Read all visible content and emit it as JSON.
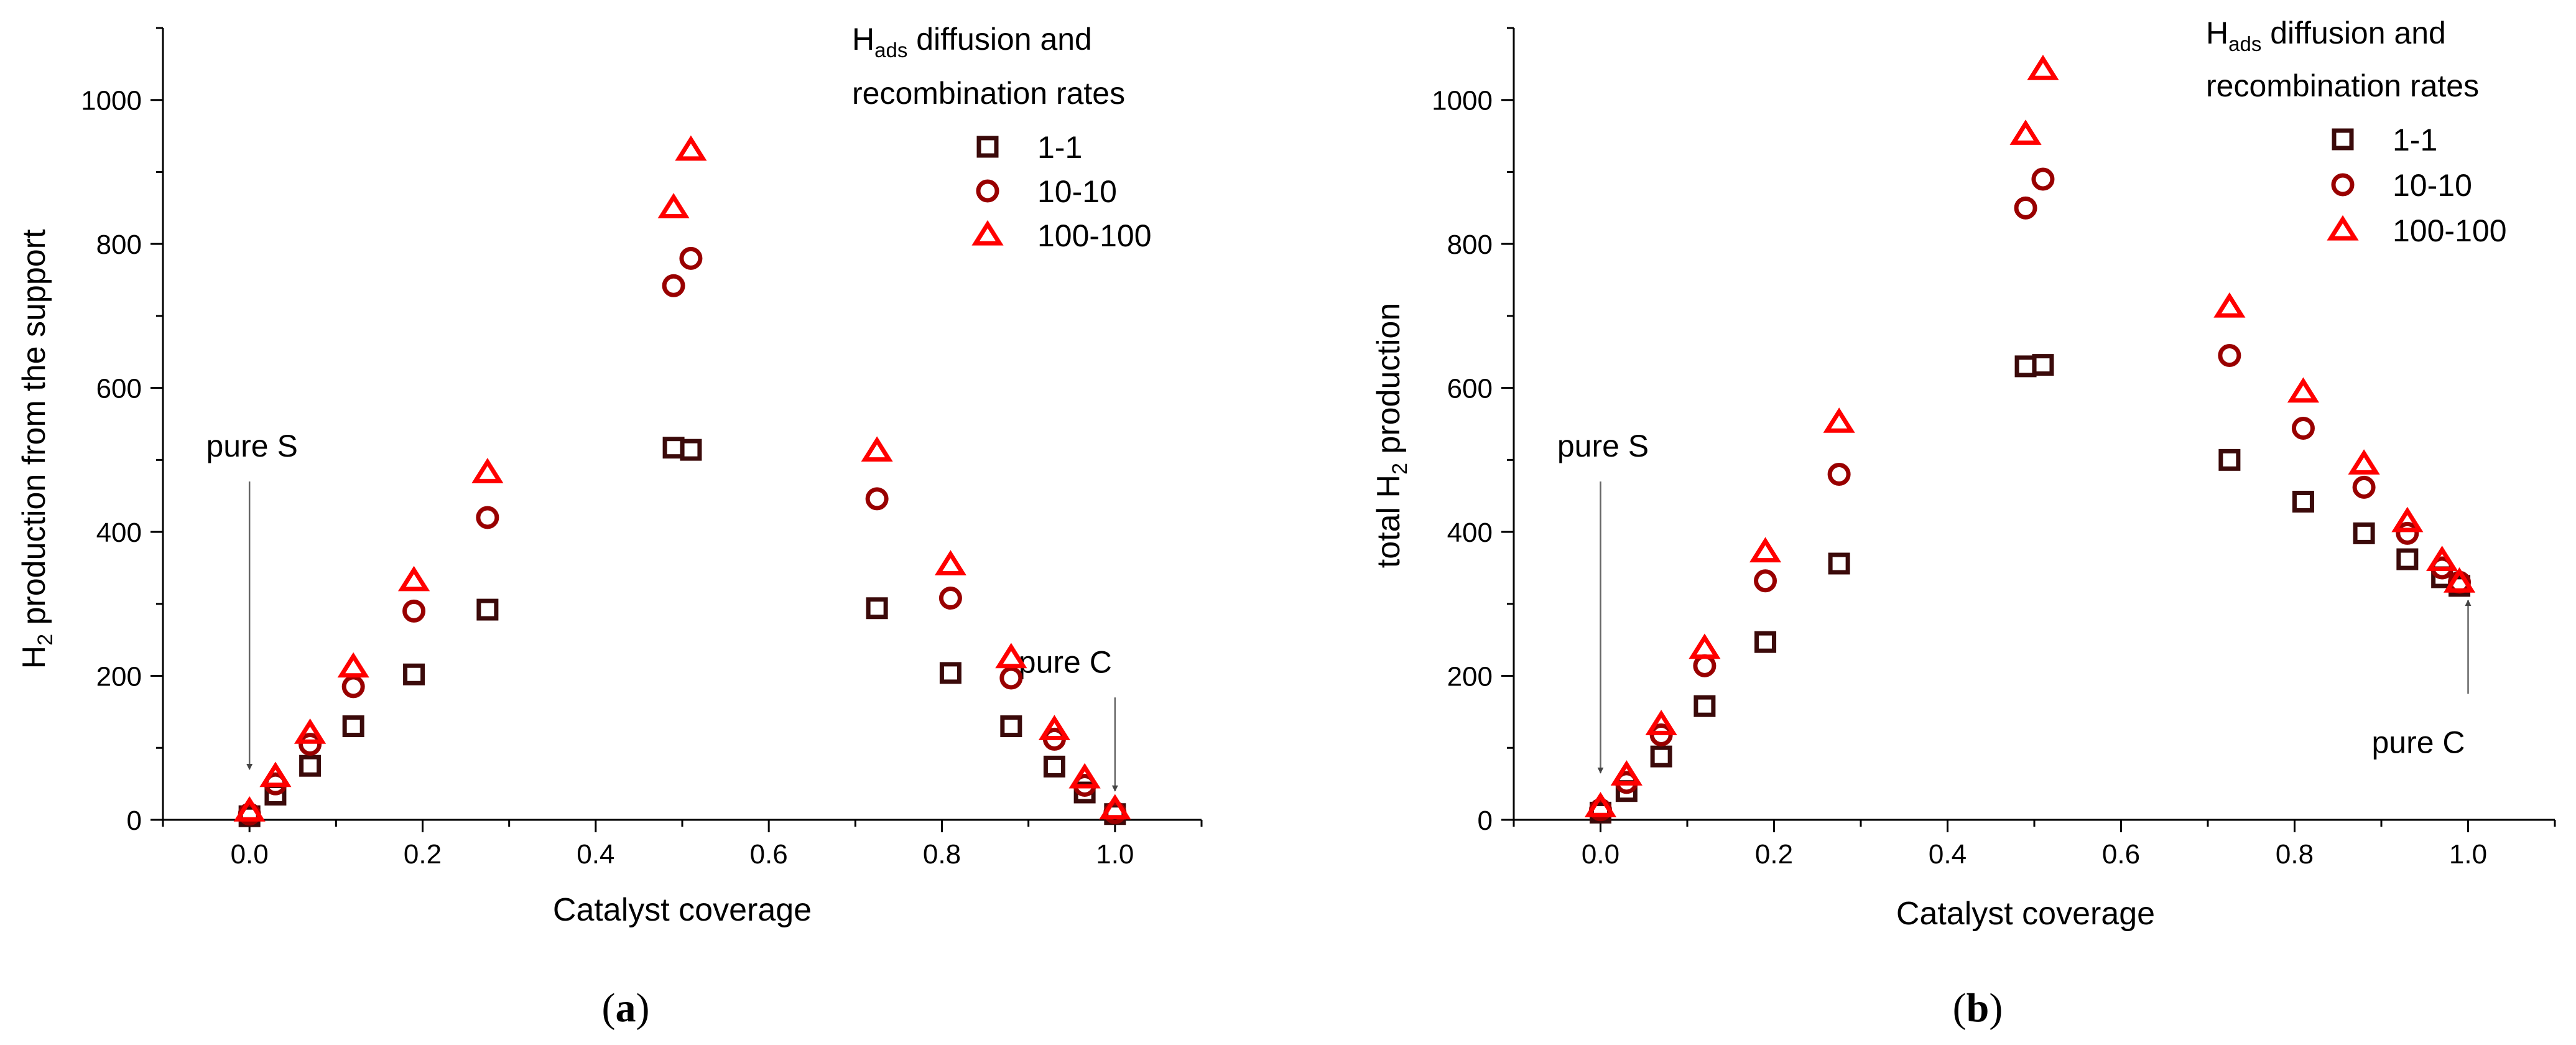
{
  "colors": {
    "series_1_1": "#3b0a0a",
    "series_10_10": "#990000",
    "series_100_100": "#ff0000",
    "axis": "#000000",
    "arrow": "#666666"
  },
  "legend": {
    "title_prefix": "H",
    "title_subscript": "ads",
    "title_suffix": " diffusion and",
    "title_line2": "recombination rates"
  },
  "chart_data": [
    {
      "type": "scatter",
      "panel_label": "a",
      "xlabel": "Catalyst coverage",
      "ylabel": {
        "prefix": "H",
        "subscript": "2",
        "suffix": " production from the support"
      },
      "xlim": [
        -0.1,
        1.1
      ],
      "ylim": [
        0,
        1100
      ],
      "xticks": [
        0.0,
        0.2,
        0.4,
        0.6,
        0.8,
        1.0
      ],
      "xtick_labels": [
        "0.0",
        "0.2",
        "0.4",
        "0.6",
        "0.8",
        "1.0"
      ],
      "yticks": [
        0,
        200,
        400,
        600,
        800,
        1000
      ],
      "ytick_labels": [
        "0",
        "200",
        "400",
        "600",
        "800",
        "1000"
      ],
      "legend_position": "top-right",
      "annotations": [
        {
          "text": "pure S",
          "point_x": 0.0,
          "point_y": 70,
          "tail_y": 470,
          "label_side": "above"
        },
        {
          "text": "pure C",
          "point_x": 1.0,
          "point_y": 40,
          "tail_y": 170,
          "label_side": "above"
        }
      ],
      "series": [
        {
          "name": "1-1",
          "marker": "square",
          "x": [
            0.0,
            0.03,
            0.07,
            0.12,
            0.19,
            0.275,
            0.49,
            0.51,
            0.725,
            0.81,
            0.88,
            0.93,
            0.965,
            1.0
          ],
          "y": [
            5,
            35,
            75,
            130,
            202,
            292,
            517,
            514,
            294,
            204,
            130,
            74,
            38,
            8
          ]
        },
        {
          "name": "10-10",
          "marker": "circle",
          "x": [
            0.0,
            0.03,
            0.07,
            0.12,
            0.19,
            0.275,
            0.49,
            0.51,
            0.725,
            0.81,
            0.88,
            0.93,
            0.965,
            1.0
          ],
          "y": [
            8,
            50,
            105,
            185,
            290,
            420,
            742,
            780,
            446,
            308,
            197,
            112,
            48,
            10
          ]
        },
        {
          "name": "100-100",
          "marker": "triangle",
          "x": [
            0.0,
            0.03,
            0.07,
            0.12,
            0.19,
            0.275,
            0.49,
            0.51,
            0.725,
            0.81,
            0.88,
            0.93,
            0.965,
            1.0
          ],
          "y": [
            12,
            60,
            120,
            212,
            332,
            482,
            850,
            930,
            512,
            354,
            225,
            125,
            58,
            15
          ]
        }
      ]
    },
    {
      "type": "scatter",
      "panel_label": "b",
      "xlabel": "Catalyst coverage",
      "ylabel": {
        "prefix": "total H",
        "subscript": "2",
        "suffix": " production"
      },
      "xlim": [
        -0.1,
        1.1
      ],
      "ylim": [
        0,
        1100
      ],
      "xticks": [
        0.0,
        0.2,
        0.4,
        0.6,
        0.8,
        1.0
      ],
      "xtick_labels": [
        "0.0",
        "0.2",
        "0.4",
        "0.6",
        "0.8",
        "1.0"
      ],
      "yticks": [
        0,
        200,
        400,
        600,
        800,
        1000
      ],
      "ytick_labels": [
        "0",
        "200",
        "400",
        "600",
        "800",
        "1000"
      ],
      "legend_position": "top-right",
      "annotations": [
        {
          "text": "pure S",
          "point_x": 0.0,
          "point_y": 65,
          "tail_y": 470,
          "label_side": "above"
        },
        {
          "text": "pure C",
          "point_x": 1.0,
          "point_y": 305,
          "tail_y": 175,
          "label_side": "below"
        }
      ],
      "series": [
        {
          "name": "1-1",
          "marker": "square",
          "x": [
            0.0,
            0.03,
            0.07,
            0.12,
            0.19,
            0.275,
            0.49,
            0.51,
            0.725,
            0.81,
            0.88,
            0.93,
            0.97,
            0.99
          ],
          "y": [
            10,
            40,
            88,
            158,
            247,
            356,
            630,
            632,
            500,
            442,
            398,
            362,
            337,
            325
          ]
        },
        {
          "name": "10-10",
          "marker": "circle",
          "x": [
            0.0,
            0.03,
            0.07,
            0.12,
            0.19,
            0.275,
            0.49,
            0.51,
            0.725,
            0.81,
            0.88,
            0.93,
            0.97,
            0.99
          ],
          "y": [
            14,
            52,
            118,
            214,
            332,
            480,
            850,
            890,
            645,
            544,
            462,
            398,
            350,
            330
          ]
        },
        {
          "name": "100-100",
          "marker": "triangle",
          "x": [
            0.0,
            0.03,
            0.07,
            0.12,
            0.19,
            0.275,
            0.49,
            0.51,
            0.725,
            0.81,
            0.88,
            0.93,
            0.97,
            0.99
          ],
          "y": [
            18,
            62,
            132,
            238,
            372,
            552,
            952,
            1042,
            712,
            594,
            494,
            414,
            360,
            330
          ]
        }
      ]
    }
  ]
}
